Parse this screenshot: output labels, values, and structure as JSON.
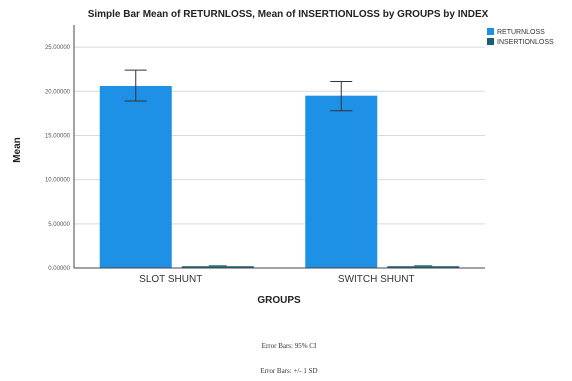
{
  "chart_data": {
    "type": "bar",
    "title": "Simple Bar Mean of RETURNLOSS, Mean of INSERTIONLOSS by GROUPS by INDEX",
    "xlabel": "GROUPS",
    "ylabel": "Mean",
    "categories": [
      "SLOT SHUNT",
      "SWITCH SHUNT"
    ],
    "series": [
      {
        "name": "RETURNLOSS",
        "color": "#1e90e6",
        "values": [
          20.6,
          19.5
        ],
        "error_low": [
          18.9,
          17.8
        ],
        "error_high": [
          22.4,
          21.1
        ]
      },
      {
        "name": "INSERTIONLOSS",
        "color": "#1a5f7a",
        "values": [
          0.2,
          0.2
        ],
        "error_low": [
          0.15,
          0.15
        ],
        "error_high": [
          0.25,
          0.25
        ]
      }
    ],
    "ylim": [
      0,
      27.5
    ],
    "yticks": [
      0,
      5,
      10,
      15,
      20,
      25
    ],
    "ytick_labels": [
      "0.00000",
      "5.00000",
      "10.00000",
      "15.00000",
      "20.00000",
      "25.00000"
    ],
    "grid": true,
    "legend_position": "top-right"
  },
  "notes": {
    "error_ci": "Error Bars: 95% CI",
    "error_sd": "Error Bars: +/- 1 SD"
  }
}
